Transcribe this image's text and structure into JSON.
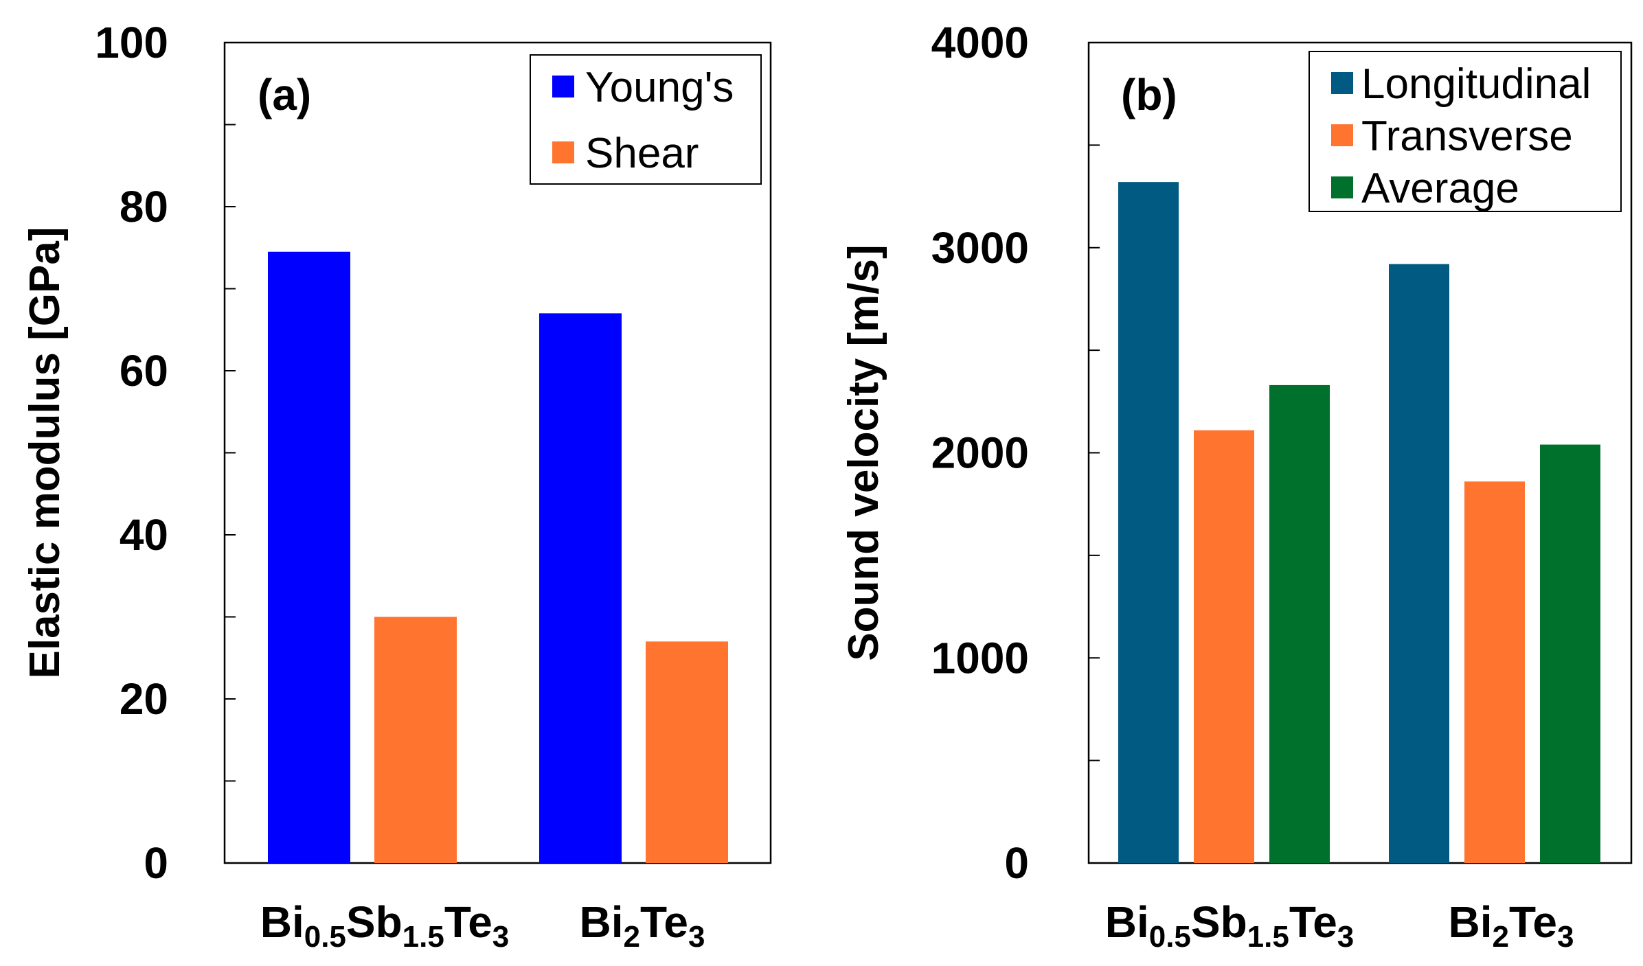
{
  "chart_data": [
    {
      "type": "bar",
      "panel": "(a)",
      "ylabel": "Elastic modulus [GPa]",
      "ylim": [
        0,
        100
      ],
      "yticks": [
        "0",
        "20",
        "40",
        "60",
        "80",
        "100"
      ],
      "categories": [
        {
          "base": "Bi",
          "s1": "0.5",
          "mid": "Sb",
          "s2": "1.5",
          "end": "Te",
          "s3": "3"
        },
        {
          "base": "Bi",
          "s1": "2",
          "mid": "Te",
          "s2": "3",
          "end": "",
          "s3": ""
        }
      ],
      "legend_position": "top-right",
      "series": [
        {
          "name": "Young's",
          "color": "#0000ff",
          "values": [
            74.5,
            67
          ]
        },
        {
          "name": "Shear",
          "color": "#ff7530",
          "values": [
            30,
            27
          ]
        }
      ]
    },
    {
      "type": "bar",
      "panel": "(b)",
      "ylabel": "Sound velocity [m/s]",
      "ylim": [
        0,
        4000
      ],
      "yticks": [
        "0",
        "1000",
        "2000",
        "3000",
        "4000"
      ],
      "categories": [
        {
          "base": "Bi",
          "s1": "0.5",
          "mid": "Sb",
          "s2": "1.5",
          "end": "Te",
          "s3": "3"
        },
        {
          "base": "Bi",
          "s1": "2",
          "mid": "Te",
          "s2": "3",
          "end": "",
          "s3": ""
        }
      ],
      "legend_position": "top-right",
      "series": [
        {
          "name": "Longitudinal",
          "color": "#005a82",
          "values": [
            3320,
            2920
          ]
        },
        {
          "name": "Transverse",
          "color": "#ff7530",
          "values": [
            2110,
            1860
          ]
        },
        {
          "name": "Average",
          "color": "#00702d",
          "values": [
            2330,
            2040
          ]
        }
      ]
    }
  ]
}
